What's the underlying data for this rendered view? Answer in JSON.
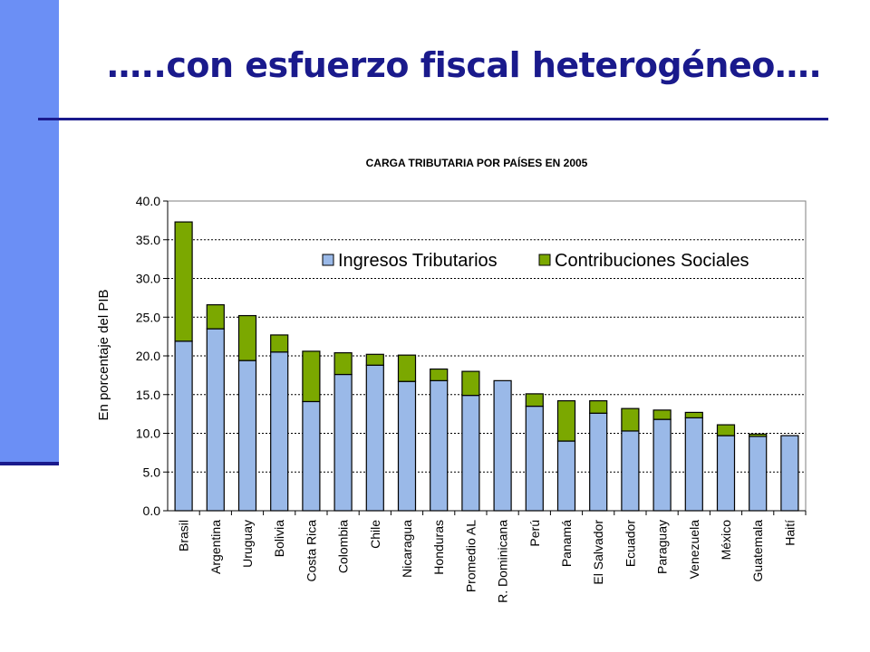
{
  "slide": {
    "title": "…..con esfuerzo fiscal heterogéneo….",
    "accent_color": "#1a1a8c",
    "side_bar_color": "#6b8ff5"
  },
  "chart_data": {
    "type": "bar",
    "stacked": true,
    "title": "CARGA TRIBUTARIA POR PAÍSES EN 2005",
    "ylabel": "En porcentaje del PIB",
    "xlabel": "",
    "ylim": [
      0,
      40
    ],
    "yticks": [
      "0.0",
      "5.0",
      "10.0",
      "15.0",
      "20.0",
      "25.0",
      "30.0",
      "35.0",
      "40.0"
    ],
    "grid": true,
    "legend_position": "top-right",
    "categories": [
      "Brasil",
      "Argentina",
      "Uruguay",
      "Bolivia",
      "Costa Rica",
      "Colombia",
      "Chile",
      "Nicaragua",
      "Honduras",
      "Promedio AL",
      "R. Dominicana",
      "Perú",
      "Panamá",
      "El Salvador",
      "Ecuador",
      "Paraguay",
      "Venezuela",
      "México",
      "Guatemala",
      "Haití"
    ],
    "series": [
      {
        "name": "Ingresos Tributarios",
        "color": "#9ab9e8",
        "values": [
          21.9,
          23.5,
          19.4,
          20.5,
          14.1,
          17.6,
          18.8,
          16.7,
          16.8,
          14.9,
          16.8,
          13.5,
          9.0,
          12.6,
          10.3,
          11.8,
          12.0,
          9.7,
          9.6,
          9.7
        ]
      },
      {
        "name": "Contribuciones Sociales",
        "color": "#7ba800",
        "values": [
          15.4,
          3.1,
          5.8,
          2.2,
          6.5,
          2.8,
          1.4,
          3.4,
          1.5,
          3.1,
          0.0,
          1.6,
          5.2,
          1.6,
          2.9,
          1.2,
          0.7,
          1.4,
          0.3,
          0.0
        ]
      }
    ]
  }
}
